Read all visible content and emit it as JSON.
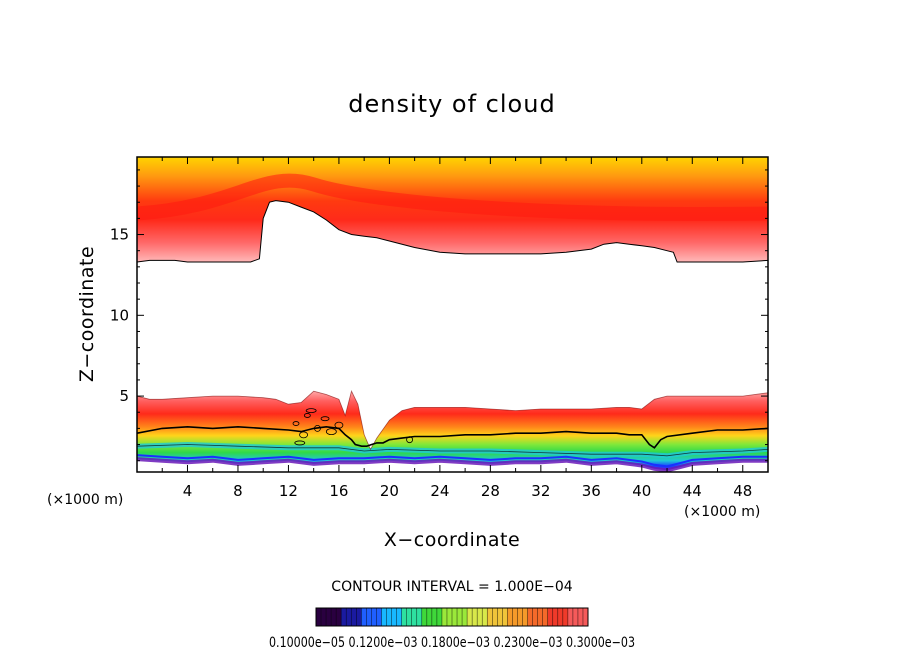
{
  "chart_data": {
    "type": "heatmap",
    "title": "density of cloud",
    "xlabel": "X−coordinate",
    "ylabel": "Z−coordinate",
    "x_unit": "(×1000 m)",
    "z_unit": "(×1000 m)",
    "xlim": [
      0,
      50
    ],
    "ylim": [
      0.3,
      19.8
    ],
    "x_ticks": [
      "4",
      "8",
      "12",
      "16",
      "20",
      "24",
      "28",
      "32",
      "36",
      "40",
      "44",
      "48"
    ],
    "y_ticks": [
      "5",
      "10",
      "15"
    ],
    "contour_interval": "CONTOUR INTERVAL = 1.000E−04",
    "colorbar_labels": "0.10000e−05 0.1200e−03 0.1800e−03 0.2300e−03 0.3000e−03",
    "upper_layer_base": {
      "x": [
        0,
        1,
        2,
        3,
        4,
        5,
        6,
        7,
        8,
        9,
        9.7,
        10,
        10.5,
        11,
        12,
        13,
        14,
        15,
        16,
        17,
        18,
        19,
        20,
        22,
        24,
        26,
        28,
        30,
        32,
        34,
        36,
        37,
        38,
        39,
        40,
        41,
        42,
        42.5,
        42.8,
        44,
        46,
        48,
        50
      ],
      "z": [
        13.3,
        13.4,
        13.4,
        13.4,
        13.3,
        13.3,
        13.3,
        13.3,
        13.3,
        13.3,
        13.5,
        16.0,
        17.0,
        17.1,
        17.0,
        16.7,
        16.4,
        15.9,
        15.3,
        15.0,
        14.9,
        14.8,
        14.6,
        14.2,
        13.9,
        13.8,
        13.8,
        13.8,
        13.8,
        13.9,
        14.1,
        14.4,
        14.5,
        14.4,
        14.3,
        14.2,
        14.0,
        13.9,
        13.3,
        13.3,
        13.3,
        13.3,
        13.4
      ]
    },
    "upper_layer_peak_z": 17.5,
    "lower_layer_top": {
      "x": [
        0,
        1,
        2,
        4,
        6,
        8,
        10,
        11,
        12,
        13,
        14,
        15,
        16,
        16.5,
        17,
        17.5,
        18,
        18.5,
        19,
        20,
        21,
        22,
        24,
        26,
        28,
        30,
        32,
        34,
        36,
        38,
        39,
        40,
        41,
        42,
        44,
        46,
        48,
        50
      ],
      "z": [
        5.0,
        4.8,
        4.8,
        4.9,
        5.0,
        5.0,
        4.9,
        4.8,
        4.5,
        4.6,
        5.3,
        5.1,
        4.8,
        3.8,
        5.3,
        4.5,
        2.6,
        1.7,
        2.4,
        3.5,
        4.1,
        4.3,
        4.3,
        4.3,
        4.2,
        4.1,
        4.2,
        4.2,
        4.2,
        4.3,
        4.3,
        4.2,
        4.8,
        5.0,
        5.0,
        5.0,
        5.0,
        5.2
      ]
    },
    "lower_layer_mid": {
      "x": [
        0,
        2,
        4,
        6,
        8,
        10,
        12,
        13,
        14,
        15,
        16,
        16.5,
        17,
        17.3,
        17.8,
        18.2,
        18.6,
        19,
        19.5,
        20,
        21,
        22,
        24,
        26,
        28,
        30,
        32,
        34,
        36,
        38,
        39,
        40,
        40.6,
        41,
        41.5,
        42,
        44,
        46,
        48,
        50
      ],
      "z": [
        2.7,
        3.0,
        3.1,
        3.0,
        3.1,
        3.0,
        2.9,
        2.8,
        3.0,
        3.1,
        3.0,
        2.6,
        2.3,
        2.0,
        1.9,
        1.9,
        2.0,
        2.1,
        2.1,
        2.3,
        2.4,
        2.5,
        2.5,
        2.6,
        2.6,
        2.7,
        2.7,
        2.8,
        2.7,
        2.7,
        2.6,
        2.6,
        2.0,
        1.8,
        2.3,
        2.5,
        2.7,
        2.9,
        2.9,
        3.0
      ]
    },
    "lower_layer_green_base": {
      "x": [
        0,
        4,
        8,
        12,
        16,
        18,
        20,
        24,
        28,
        32,
        36,
        40,
        42,
        44,
        48,
        50
      ],
      "z": [
        1.9,
        2.0,
        1.9,
        1.8,
        1.8,
        1.6,
        1.7,
        1.6,
        1.6,
        1.5,
        1.4,
        1.4,
        1.3,
        1.5,
        1.6,
        1.7
      ]
    },
    "lower_layer_base": {
      "x": [
        0,
        2,
        4,
        6,
        8,
        10,
        12,
        14,
        16,
        18,
        20,
        22,
        24,
        26,
        28,
        30,
        32,
        34,
        36,
        38,
        40,
        41,
        42,
        43,
        44,
        46,
        48,
        50
      ],
      "z": [
        1.1,
        1.0,
        0.9,
        1.0,
        0.8,
        0.9,
        1.0,
        0.8,
        0.9,
        0.9,
        1.0,
        0.9,
        1.0,
        0.9,
        0.8,
        0.9,
        0.9,
        1.0,
        0.8,
        0.9,
        0.7,
        0.5,
        0.4,
        0.6,
        0.8,
        0.9,
        1.0,
        1.0
      ]
    },
    "colorbar_palette": [
      "#2a0040",
      "#1a1aa0",
      "#1f5fff",
      "#18b8ff",
      "#2ee0a0",
      "#3fd83a",
      "#9ae83a",
      "#d8e84a",
      "#f0c43a",
      "#f59a2a",
      "#f56a2a",
      "#f03a2a",
      "#f55a5a"
    ],
    "palette": {
      "outer": "#ffd000",
      "core": "#ff2a1a",
      "edge": "#ffb0b0",
      "green": "#30d84a",
      "cyan": "#1fc8d8",
      "blue": "#1a40ff",
      "violet": "#8a2ad0"
    }
  }
}
